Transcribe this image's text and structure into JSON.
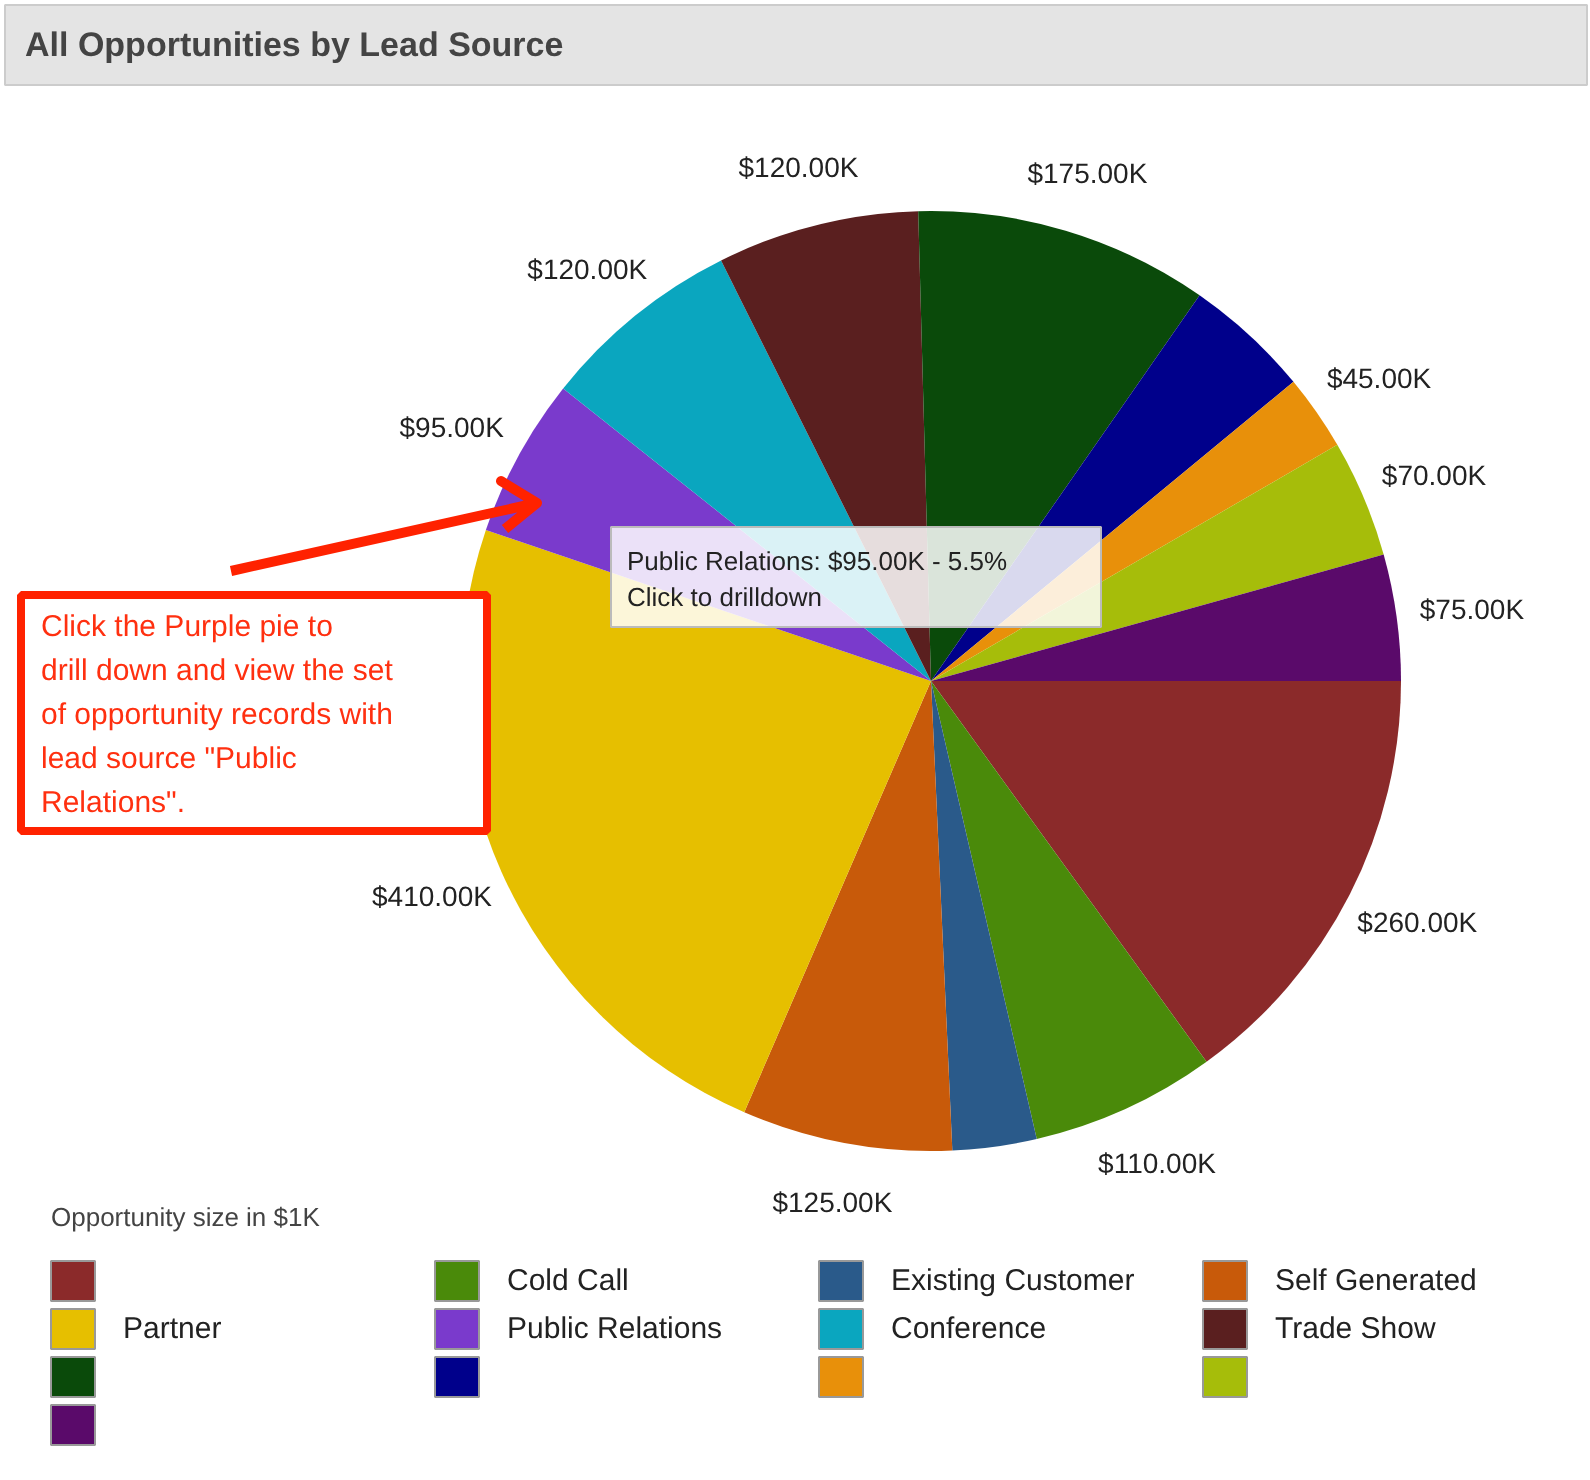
{
  "chart_data": {
    "type": "pie",
    "title": "All Opportunities by Lead Source",
    "categories": [
      null,
      "Cold Call",
      "Existing Customer",
      "Self Generated",
      "Partner",
      "Public Relations",
      "Conference",
      "Trade Show",
      null,
      null,
      null,
      null,
      null
    ],
    "values": [
      260,
      110,
      50,
      125,
      410,
      95,
      120,
      120,
      175,
      75,
      45,
      70,
      75
    ],
    "value_labels": [
      "$260.00K",
      "$110.00K",
      null,
      "$125.00K",
      "$410.00K",
      "$95.00K",
      "$120.00K",
      "$120.00K",
      "$175.00K",
      null,
      "$45.00K",
      "$70.00K",
      "$75.00K"
    ],
    "colors": [
      "#8b2a2a",
      "#4a8a0a",
      "#2a5a8a",
      "#c85a0a",
      "#e6bf00",
      "#7a3acc",
      "#0aa6bf",
      "#5a1f1f",
      "#0a4a0a",
      "#00008b",
      "#e8900a",
      "#a6bd0a",
      "#5a0a6a"
    ],
    "legend": "bottom",
    "annotations": [
      "Public Relations: $95.00K - 5.5%",
      "Click to drilldown",
      "Click the Purple pie to drill down and view the set of opportunity records with lead source \"Public Relations\".",
      "Opportunity size in $1K"
    ]
  }
}
